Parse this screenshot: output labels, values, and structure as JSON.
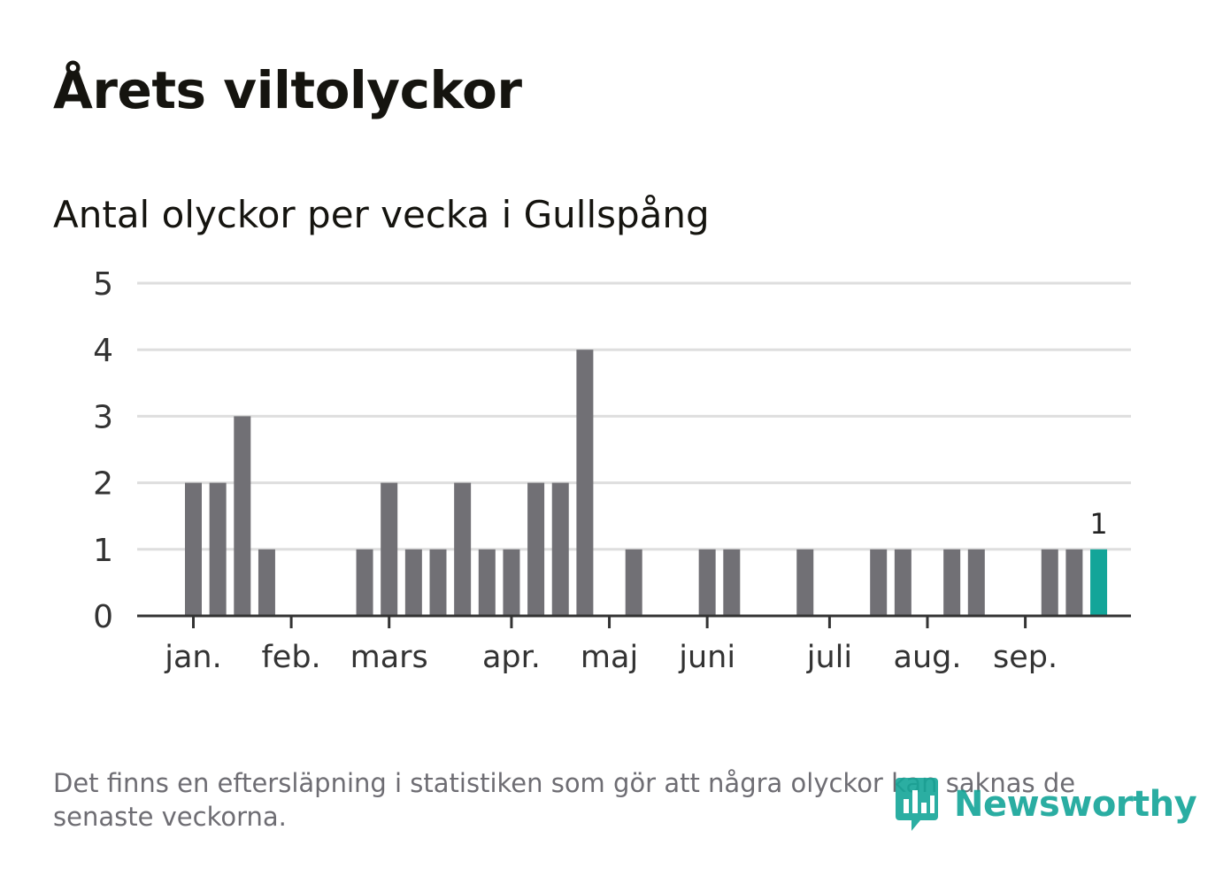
{
  "title": "Årets viltolyckor",
  "subtitle": "Antal olyckor per vecka i Gullspång",
  "footnote": "Det finns en eftersläpning i statistiken som gör att några olyckor kan saknas de senaste veckorna.",
  "logo": {
    "text": "Newsworthy",
    "icon": "newsworthy-logo-icon"
  },
  "colors": {
    "bar": "#717075",
    "highlight": "#13a599",
    "grid": "#dedede",
    "axis": "#333333",
    "text": "#333333"
  },
  "chart_data": {
    "type": "bar",
    "x_unit": "week",
    "x": [
      1,
      2,
      3,
      4,
      5,
      6,
      7,
      8,
      9,
      10,
      11,
      12,
      13,
      14,
      15,
      16,
      17,
      18,
      19,
      20,
      21,
      22,
      23,
      24,
      25,
      26,
      27,
      28,
      29,
      30,
      31,
      32,
      33,
      34,
      35,
      36,
      37,
      38
    ],
    "values": [
      2,
      2,
      3,
      1,
      0,
      0,
      0,
      1,
      2,
      1,
      1,
      2,
      1,
      1,
      2,
      2,
      4,
      0,
      1,
      0,
      0,
      1,
      1,
      0,
      0,
      1,
      0,
      0,
      1,
      1,
      0,
      1,
      1,
      0,
      0,
      1,
      1,
      null
    ],
    "highlight": {
      "x": 38,
      "value": 1,
      "label": "1"
    },
    "yticks": [
      0,
      1,
      2,
      3,
      4,
      5
    ],
    "ylim": [
      0,
      5
    ],
    "month_labels": [
      "jan.",
      "feb.",
      "mars",
      "apr.",
      "maj",
      "juni",
      "juli",
      "aug.",
      "sep."
    ],
    "month_tick_weeks": [
      1,
      5,
      9,
      14,
      18,
      22,
      27,
      31,
      35
    ],
    "grid": true
  }
}
